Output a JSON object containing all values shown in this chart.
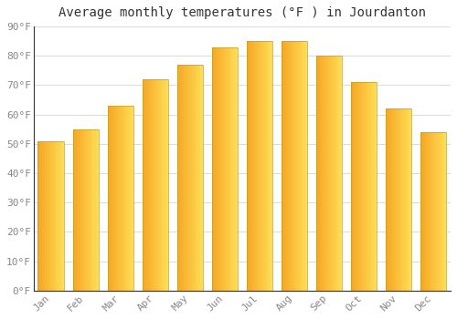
{
  "title": "Average monthly temperatures (°F ) in Jourdanton",
  "months": [
    "Jan",
    "Feb",
    "Mar",
    "Apr",
    "May",
    "Jun",
    "Jul",
    "Aug",
    "Sep",
    "Oct",
    "Nov",
    "Dec"
  ],
  "values": [
    51,
    55,
    63,
    72,
    77,
    83,
    85,
    85,
    80,
    71,
    62,
    54
  ],
  "bar_color_left": "#F5A623",
  "bar_color_right": "#FFD966",
  "bar_edge_color": "#C8922A",
  "ylim": [
    0,
    90
  ],
  "yticks": [
    0,
    10,
    20,
    30,
    40,
    50,
    60,
    70,
    80,
    90
  ],
  "ytick_labels": [
    "0°F",
    "10°F",
    "20°F",
    "30°F",
    "40°F",
    "50°F",
    "60°F",
    "70°F",
    "80°F",
    "90°F"
  ],
  "background_color": "#FFFFFF",
  "grid_color": "#DDDDDD",
  "title_fontsize": 10,
  "tick_fontsize": 8,
  "font_family": "monospace"
}
